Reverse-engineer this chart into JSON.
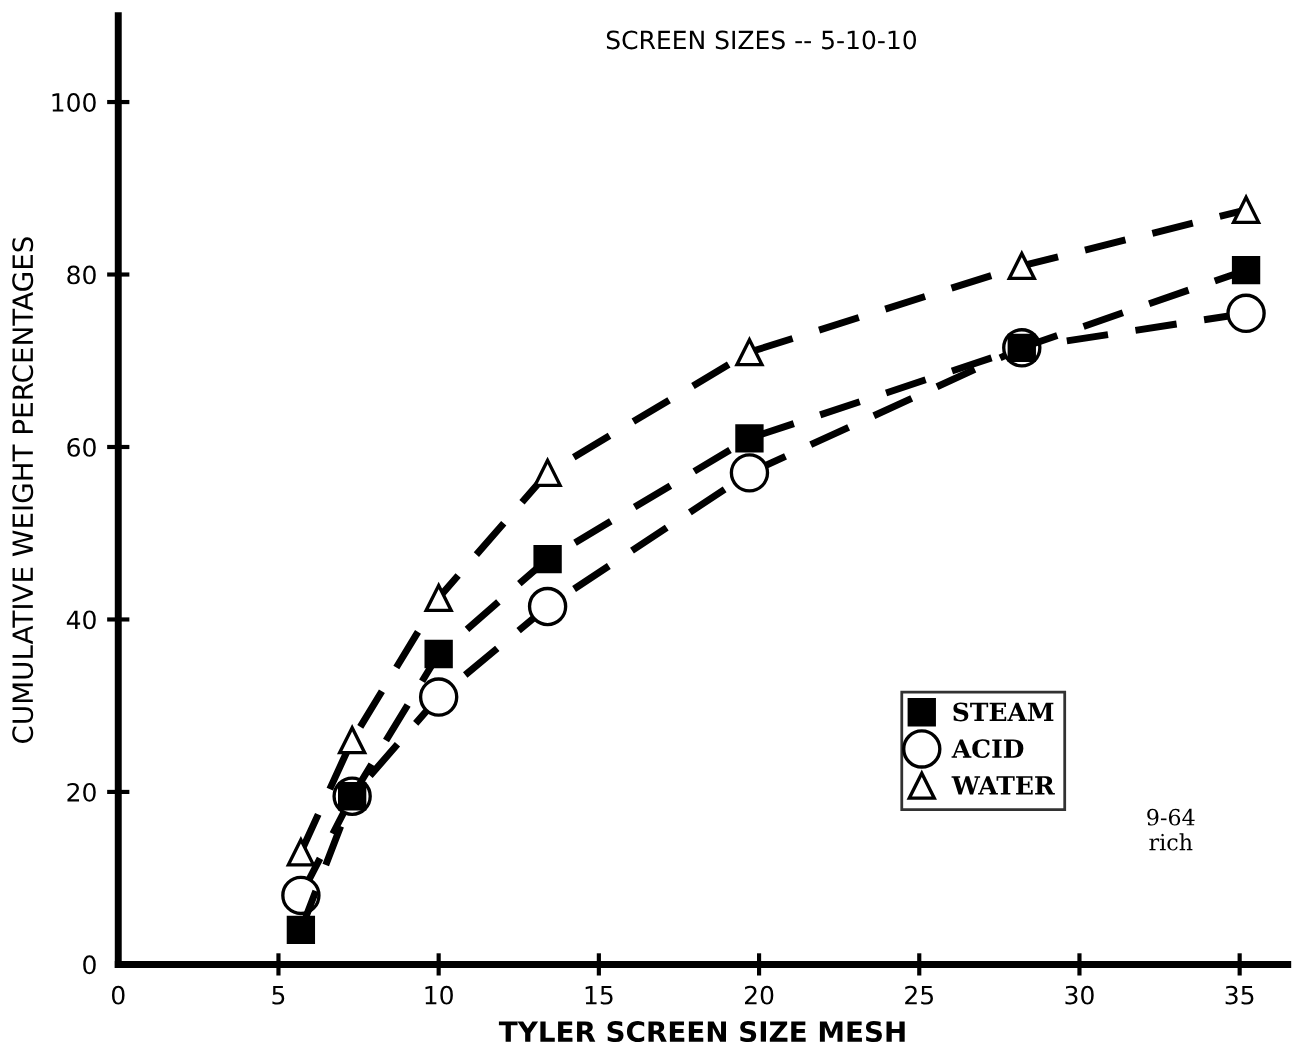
{
  "chart_data": {
    "type": "line",
    "title": "SCREEN SIZES -- 5-10-10",
    "xlabel": "TYLER SCREEN SIZE MESH",
    "ylabel": "CUMULATIVE WEIGHT PERCENTAGES",
    "annotations": [
      "9-64\nrich"
    ],
    "x": [
      5.7,
      7.3,
      10,
      13.4,
      19.7,
      28.2,
      35.2
    ],
    "series": [
      {
        "name": "STEAM",
        "color": "#000000",
        "marker": "square",
        "values": [
          4,
          19.5,
          36,
          47,
          61,
          71.5,
          80.5
        ]
      },
      {
        "name": "ACID",
        "color": "#000000",
        "marker": "circle",
        "values": [
          8,
          19.5,
          31,
          41.5,
          57,
          71.5,
          75.5
        ]
      },
      {
        "name": "WATER",
        "color": "#000000",
        "marker": "triangle",
        "values": [
          13,
          26,
          42.5,
          57,
          71,
          81,
          87.5
        ]
      }
    ],
    "xlim": [
      0,
      36.5
    ],
    "ylim": [
      0,
      110
    ],
    "xticks": [
      0,
      5,
      10,
      15,
      20,
      25,
      30,
      35
    ],
    "yticks": [
      0,
      20,
      40,
      60,
      80,
      100
    ],
    "line_style": "dashed",
    "legend": "bottom right",
    "grid": false
  }
}
